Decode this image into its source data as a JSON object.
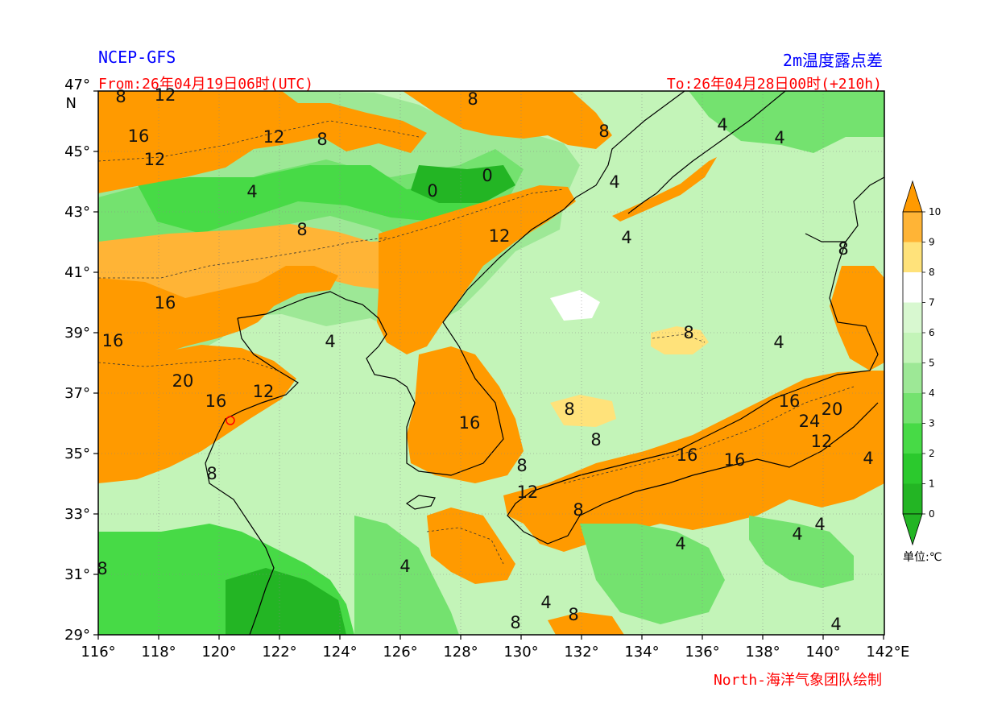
{
  "header": {
    "model": "NCEP-GFS",
    "product": "2m温度露点差",
    "from_time": "From:26年04月19日06时(UTC)",
    "to_time": "To:26年04月28日00时(+210h)",
    "credit": "North-海洋气象团队绘制"
  },
  "axes": {
    "lat_labels": [
      "47°",
      "45°",
      "43°",
      "41°",
      "39°",
      "37°",
      "35°",
      "33°",
      "31°",
      "29°"
    ],
    "lat_unit": "N",
    "lon_labels": [
      "116°",
      "118°",
      "120°",
      "122°",
      "124°",
      "126°",
      "128°",
      "130°",
      "132°",
      "134°",
      "136°",
      "138°",
      "140°",
      "142°"
    ],
    "lon_unit": "E"
  },
  "legend": {
    "ticks": [
      "10",
      "9",
      "8",
      "7",
      "6",
      "5",
      "4",
      "3",
      "2",
      "1",
      "0"
    ],
    "unit": "单位:℃",
    "colors": {
      "10": "#ff9a00",
      "9": "#ffb436",
      "8": "#ffe27a",
      "7": "#ffffff",
      "6": "#d8f8d0",
      "5": "#c3f4b8",
      "4": "#9de896",
      "3": "#74e26f",
      "2": "#47da46",
      "1": "#2bc92d",
      "0": "#23b524"
    }
  },
  "contour_labels": [
    {
      "text": "8"
    },
    {
      "text": "12"
    },
    {
      "text": "16"
    },
    {
      "text": "12"
    },
    {
      "text": "12"
    },
    {
      "text": "8"
    },
    {
      "text": "8"
    },
    {
      "text": "4"
    },
    {
      "text": "0"
    },
    {
      "text": "0"
    },
    {
      "text": "8"
    },
    {
      "text": "4"
    },
    {
      "text": "4"
    },
    {
      "text": "4"
    },
    {
      "text": "4"
    },
    {
      "text": "8"
    },
    {
      "text": "12"
    },
    {
      "text": "8"
    },
    {
      "text": "16"
    },
    {
      "text": "16"
    },
    {
      "text": "4"
    },
    {
      "text": "20"
    },
    {
      "text": "16"
    },
    {
      "text": "12"
    },
    {
      "text": "8"
    },
    {
      "text": "8"
    },
    {
      "text": "16"
    },
    {
      "text": "4"
    },
    {
      "text": "16"
    },
    {
      "text": "20"
    },
    {
      "text": "24"
    },
    {
      "text": "12"
    },
    {
      "text": "16"
    },
    {
      "text": "16"
    },
    {
      "text": "4"
    },
    {
      "text": "8"
    },
    {
      "text": "8"
    },
    {
      "text": "12"
    },
    {
      "text": "8"
    },
    {
      "text": "4"
    },
    {
      "text": "4"
    },
    {
      "text": "4"
    },
    {
      "text": "4"
    },
    {
      "text": "8"
    },
    {
      "text": "8"
    },
    {
      "text": "4"
    },
    {
      "text": "8"
    },
    {
      "text": "4"
    },
    {
      "text": "8"
    }
  ]
}
